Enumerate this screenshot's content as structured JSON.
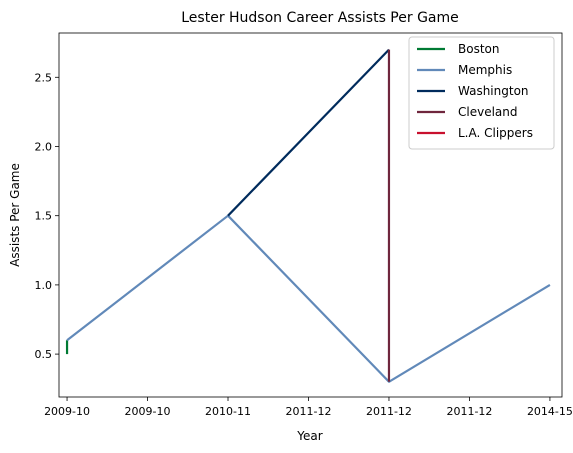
{
  "chart_data": {
    "type": "line",
    "title": "Lester Hudson Career Assists Per Game",
    "xlabel": "Year",
    "ylabel": "Assists Per Game",
    "x_tick_labels": [
      "2009-10",
      "2009-10",
      "2010-11",
      "2011-12",
      "2011-12",
      "2011-12",
      "2014-15"
    ],
    "xlim": [
      -0.1,
      6.15
    ],
    "ylim": [
      0.19,
      2.82
    ],
    "y_ticks": [
      0.5,
      1.0,
      1.5,
      2.0,
      2.5
    ],
    "y_tick_labels": [
      "0.5",
      "1.0",
      "1.5",
      "2.0",
      "2.5"
    ],
    "grid": false,
    "legend_position": "top-right",
    "series": [
      {
        "name": "Boston",
        "color": "#007A33",
        "points": [
          [
            0,
            0.5
          ],
          [
            0,
            0.6
          ]
        ]
      },
      {
        "name": "Memphis",
        "color": "#6189B9",
        "points": [
          [
            0,
            0.6
          ],
          [
            2,
            1.5
          ],
          [
            4,
            0.3
          ],
          [
            6,
            1.0
          ]
        ]
      },
      {
        "name": "Washington",
        "color": "#002B5C",
        "points": [
          [
            2,
            1.5
          ],
          [
            4,
            2.7
          ]
        ]
      },
      {
        "name": "Cleveland",
        "color": "#6F263D",
        "points": [
          [
            4,
            2.7
          ],
          [
            4,
            0.3
          ]
        ]
      },
      {
        "name": "L.A. Clippers",
        "color": "#C8102E",
        "points": []
      }
    ]
  }
}
